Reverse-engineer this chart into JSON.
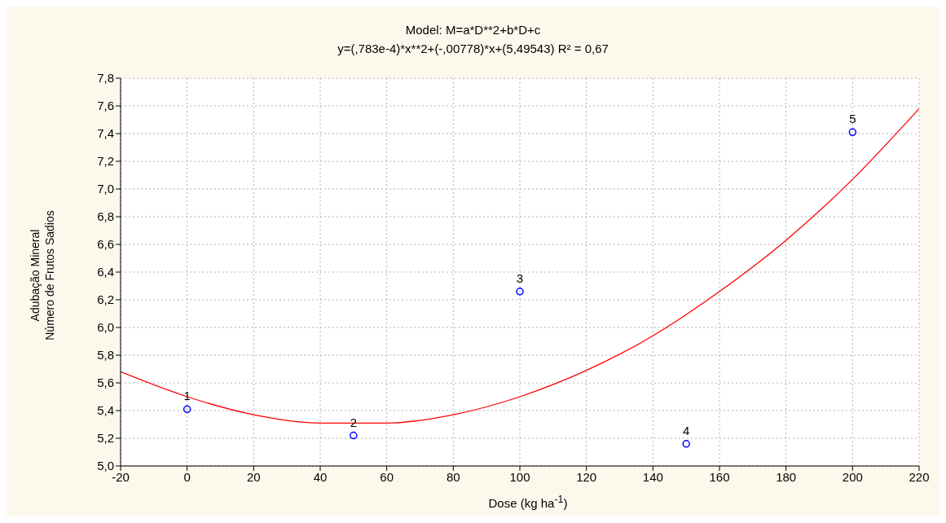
{
  "chart_data": {
    "type": "scatter",
    "title": "Model: M=a*D**2+b*D+c",
    "subtitle": "y=(,783e-4)*x**2+(-,00778)*x+(5,49543)    R² = 0,67",
    "xlabel": "Dose (kg ha$^{-1}$)",
    "ylabel": "Adubação Mineral\nNúmero de Frutos Sadios",
    "series": [
      {
        "type": "scatter",
        "color": "#0000ff",
        "marker": "circle",
        "x": [
          0,
          50,
          100,
          150,
          200
        ],
        "values": [
          5.41,
          5.22,
          6.26,
          5.16,
          7.41
        ]
      },
      {
        "type": "line",
        "color": "#ff0000",
        "marker": "none",
        "line_style": "solid",
        "x": [
          -20,
          0,
          20,
          40,
          60,
          80,
          100,
          120,
          140,
          160,
          180,
          200,
          220
        ],
        "values": [
          5.68,
          5.5,
          5.37,
          5.31,
          5.31,
          5.37,
          5.5,
          5.69,
          5.94,
          6.26,
          6.63,
          7.07,
          7.58
        ]
      }
    ],
    "annotations": [
      {
        "text": "1",
        "x": 0,
        "y": 5.41
      },
      {
        "text": "2",
        "x": 50,
        "y": 5.22
      },
      {
        "text": "3",
        "x": 100,
        "y": 6.26
      },
      {
        "text": "4",
        "x": 150,
        "y": 5.16
      },
      {
        "text": "5",
        "x": 200,
        "y": 7.41
      }
    ],
    "xlim": [
      -20,
      220
    ],
    "xticks": [
      -20,
      0,
      20,
      40,
      60,
      80,
      100,
      120,
      140,
      160,
      180,
      200,
      220
    ],
    "ylim": [
      5.0,
      7.8
    ],
    "yticks": [
      {
        "value": 5.0,
        "label": "5,0"
      },
      {
        "value": 5.2,
        "label": "5,2"
      },
      {
        "value": 5.4,
        "label": "5,4"
      },
      {
        "value": 5.6,
        "label": "5,6"
      },
      {
        "value": 5.8,
        "label": "5,8"
      },
      {
        "value": 6.0,
        "label": "6,0"
      },
      {
        "value": 6.2,
        "label": "6,2"
      },
      {
        "value": 6.4,
        "label": "6,4"
      },
      {
        "value": 6.6,
        "label": "6,6"
      },
      {
        "value": 6.8,
        "label": "6,8"
      },
      {
        "value": 7.0,
        "label": "7,0"
      },
      {
        "value": 7.2,
        "label": "7,2"
      },
      {
        "value": 7.4,
        "label": "7,4"
      },
      {
        "value": 7.6,
        "label": "7,6"
      },
      {
        "value": 7.8,
        "label": "7,8"
      }
    ],
    "grid": true,
    "legend": false
  }
}
